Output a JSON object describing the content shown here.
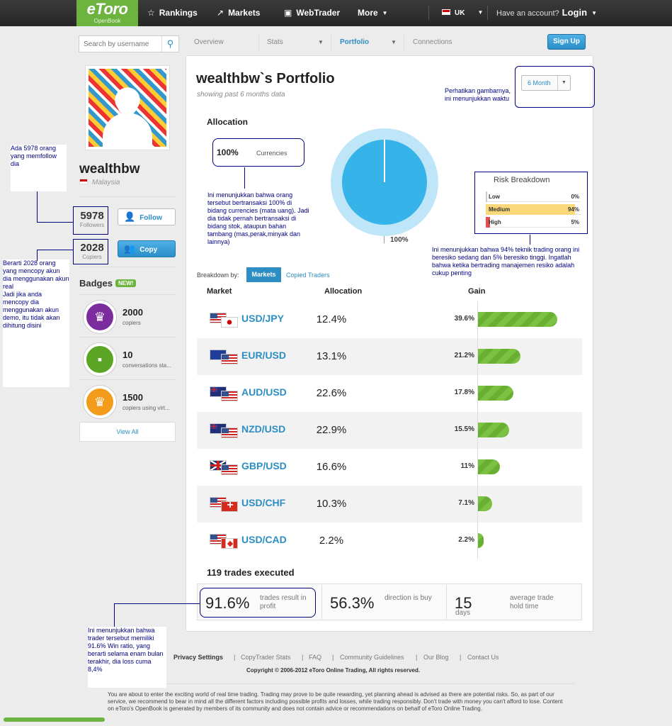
{
  "nav": {
    "logo": "eToro",
    "logo_sub": "OpenBook",
    "rankings": "Rankings",
    "markets": "Markets",
    "webtrader": "WebTrader",
    "more": "More",
    "locale": "UK",
    "account_q": "Have an account?",
    "login": "Login"
  },
  "search": {
    "placeholder": "Search by username"
  },
  "profile": {
    "username": "wealthbw",
    "country": "Malaysia",
    "followers": "5978",
    "followers_label": "Followers",
    "copiers": "2028",
    "copiers_label": "Copiers",
    "follow_label": "Follow",
    "copy_label": "Copy"
  },
  "badges": {
    "title": "Badges",
    "new_label": "NEW!",
    "items": [
      {
        "value": "2000",
        "caption": "copiers",
        "color": "#7b2d9e",
        "icon": "crown-icon"
      },
      {
        "value": "10",
        "caption": "conversations sta...",
        "color": "#5aa624",
        "icon": "chat-icon"
      },
      {
        "value": "1500",
        "caption": "copiers using virt...",
        "color": "#f39c1b",
        "icon": "crown-icon"
      }
    ],
    "view_all": "View All"
  },
  "tabs": {
    "overview": "Overview",
    "stats": "Stats",
    "portfolio": "Portfolio",
    "connections": "Connections",
    "signup": "Sign Up"
  },
  "portfolio": {
    "title": "wealthbw`s Portfolio",
    "subtitle": "showing past 6 months data",
    "period": "6 Month",
    "allocation_title": "Allocation",
    "currency_pct": "100%",
    "currency_label": "Currencies",
    "donut_label": "100%",
    "donut_fraction": 1.0,
    "accent": "#36b3e8"
  },
  "risk": {
    "title": "Risk Breakdown",
    "rows": [
      {
        "label": "Low",
        "pct": "0%",
        "value": 0,
        "color": "#cccccc"
      },
      {
        "label": "Medium",
        "pct": "94%",
        "value": 94,
        "color": "#fbd97a"
      },
      {
        "label": "High",
        "pct": "5%",
        "value": 5,
        "color": "#e05050"
      }
    ]
  },
  "breakdown": {
    "label": "Breakdown by:",
    "markets": "Markets",
    "copied": "Copied Traders",
    "col_market": "Market",
    "col_allocation": "Allocation",
    "col_gain": "Gain"
  },
  "markets": [
    {
      "pair": "USD/JPY",
      "flags": [
        "us",
        "jp"
      ],
      "allocation": "12.4%",
      "gain": "39.6%",
      "gain_value": 39.6
    },
    {
      "pair": "EUR/USD",
      "flags": [
        "eu",
        "us"
      ],
      "allocation": "13.1%",
      "gain": "21.2%",
      "gain_value": 21.2
    },
    {
      "pair": "AUD/USD",
      "flags": [
        "au",
        "us"
      ],
      "allocation": "22.6%",
      "gain": "17.8%",
      "gain_value": 17.8
    },
    {
      "pair": "NZD/USD",
      "flags": [
        "nz",
        "us"
      ],
      "allocation": "22.9%",
      "gain": "15.5%",
      "gain_value": 15.5
    },
    {
      "pair": "GBP/USD",
      "flags": [
        "gb",
        "us"
      ],
      "allocation": "16.6%",
      "gain": "11%",
      "gain_value": 11
    },
    {
      "pair": "USD/CHF",
      "flags": [
        "us",
        "ch"
      ],
      "allocation": "10.3%",
      "gain": "7.1%",
      "gain_value": 7.1
    },
    {
      "pair": "USD/CAD",
      "flags": [
        "us",
        "ca"
      ],
      "allocation": "2.2%",
      "gain": "2.2%",
      "gain_value": 2.2
    }
  ],
  "trades": {
    "title": "119 trades executed",
    "win_value": "91.6%",
    "win_label": "trades result in profit",
    "dir_value": "56.3%",
    "dir_label": "direction is buy",
    "hold_value": "15",
    "hold_unit": "days",
    "hold_label": "average trade hold time"
  },
  "footer": {
    "links": [
      "Privacy Settings",
      "CopyTrader Stats",
      "FAQ",
      "Community Guidelines",
      "Our Blog",
      "Contact Us"
    ],
    "copyright": "Copyright © 2006-2012 eToro Online Trading, All rights reserved.",
    "disclaimer": "You are about to enter the exciting world of real time trading. Trading may prove to be quite rewarding, yet planning ahead is advised as there are potential risks. So, as part of our service, we recommend to bear in mind all the different factors including possible profits and losses, while trading responsibly. Don't trade with money you can't afford to lose. Content on eToro's OpenBook is generated by members of its community and does not contain advice or recommendations on behalf of eToro Online Trading."
  },
  "annotations": {
    "followers": "Ada 5978 orang yang memfollow dia",
    "copiers": "Berarti 2028 orang yang mencopy akun dia menggunakan akun real\nJadi jika anda mencopy dia menggunakan akun demo, itu tidak akan dihitung disini",
    "period": "Perhatikan gambarnya, ini menunjukkan waktu",
    "currencies": "Ini menunjukkan bahwa orang tersebut bertransaksi 100% di bidang currencies (mata uang). Jadi dia tidak pernah bertransaksi di bidang stok, ataupun bahan tambang (mas,perak,minyak dan lainnya)",
    "risk": "Ini menunjukkan bahwa 94% teknik trading orang ini beresiko sedang dan 5% beresiko tinggi. Ingatlah bahwa ketika bertrading manajemen resiko adalah cukup penting",
    "winratio": "Ini menunjukkan bahwa trader tersebut memiliki 91.6% Win ratio, yang berarti selama enam bulan terakhir, dia loss cuma 8,4%"
  }
}
